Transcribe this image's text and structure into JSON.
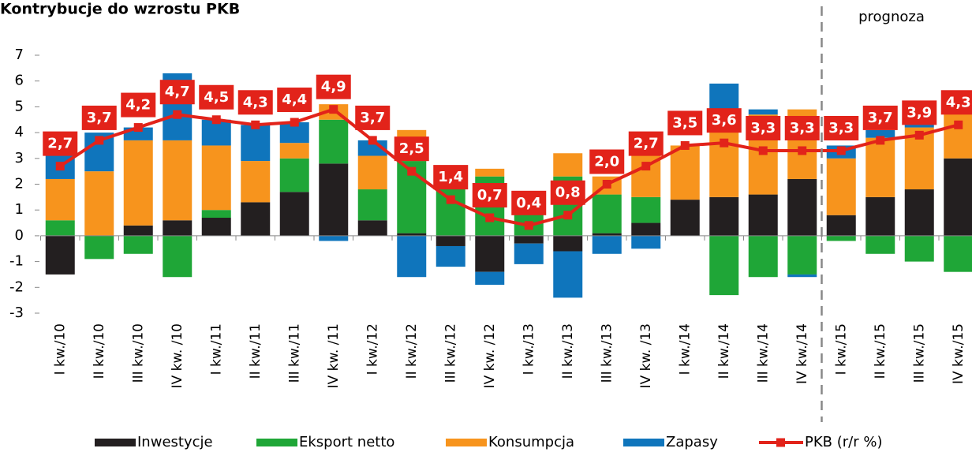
{
  "chart_data": {
    "type": "bar",
    "stacked": true,
    "title": "Kontrybucje do wzrostu PKB",
    "annotation": "prognoza",
    "categories": [
      "I kw./10",
      "II kw./10",
      "III kw./10",
      "IV kw. /10",
      "I kw./11",
      "II kw./11",
      "III kw./11",
      "IV kw. /11",
      "I kw./12",
      "II kw./12",
      "III kw./12",
      "IV kw. /12",
      "I kw./13",
      "II kw./13",
      "III kw./13",
      "IV kw. /13",
      "I kw./14",
      "II kw./14",
      "III kw./14",
      "IV kw./14",
      "I kw./15",
      "II kw./15",
      "III kw./15",
      "IV kw./15"
    ],
    "ylim": [
      -3,
      7
    ],
    "yticks": [
      7,
      6,
      5,
      4,
      3,
      2,
      1,
      0,
      -1,
      -2,
      -3
    ],
    "series": [
      {
        "name": "Inwestycje",
        "type": "bar",
        "color": "#231f20",
        "values": [
          -1.5,
          0,
          0.4,
          0.6,
          0.7,
          1.3,
          1.7,
          2.8,
          0.6,
          0.1,
          -0.4,
          -1.4,
          -0.3,
          -0.6,
          0.1,
          0.5,
          1.4,
          1.5,
          1.6,
          2.2,
          0.8,
          1.5,
          1.8,
          3.0
        ]
      },
      {
        "name": "Eksport netto",
        "type": "bar",
        "color": "#1fa637",
        "values": [
          0.6,
          -0.9,
          -0.7,
          -1.6,
          0.3,
          0,
          1.3,
          1.7,
          1.2,
          2.8,
          1.9,
          2.3,
          0.9,
          2.3,
          1.5,
          1.0,
          0,
          -2.3,
          -1.6,
          -1.5,
          -0.2,
          -0.7,
          -1.0,
          -1.4
        ]
      },
      {
        "name": "Konsumpcja",
        "type": "bar",
        "color": "#f7941d",
        "values": [
          1.6,
          2.5,
          3.3,
          3.1,
          2.5,
          1.6,
          0.6,
          0.6,
          1.3,
          1.2,
          0.7,
          0.3,
          0.6,
          0.9,
          0.7,
          1.8,
          2.1,
          3.0,
          3.1,
          2.7,
          2.2,
          2.3,
          2.4,
          1.8
        ]
      },
      {
        "name": "Zapasy",
        "type": "bar",
        "color": "#0f75bc",
        "values": [
          1.0,
          1.5,
          0.5,
          2.6,
          1.0,
          1.4,
          0.8,
          -0.2,
          0.6,
          -1.6,
          -0.8,
          -0.5,
          -0.8,
          -1.8,
          -0.7,
          -0.5,
          0,
          1.4,
          0.2,
          -0.1,
          0.5,
          0.3,
          0.3,
          0
        ]
      },
      {
        "name": "PKB (r/r %)",
        "type": "line",
        "color": "#e2231a",
        "values": [
          2.7,
          3.7,
          4.2,
          4.7,
          4.5,
          4.3,
          4.4,
          4.9,
          3.7,
          2.5,
          1.4,
          0.7,
          0.4,
          0.8,
          2.0,
          2.7,
          3.5,
          3.6,
          3.3,
          3.3,
          3.3,
          3.7,
          3.9,
          4.3
        ],
        "value_labels": [
          "2,7",
          "3,7",
          "4,2",
          "4,7",
          "4,5",
          "4,3",
          "4,4",
          "4,9",
          "3,7",
          "2,5",
          "1,4",
          "0,7",
          "0,4",
          "0,8",
          "2,0",
          "2,7",
          "3,5",
          "3,6",
          "3,3",
          "3,3",
          "3,3",
          "3,7",
          "3,9",
          "4,3"
        ]
      }
    ]
  }
}
